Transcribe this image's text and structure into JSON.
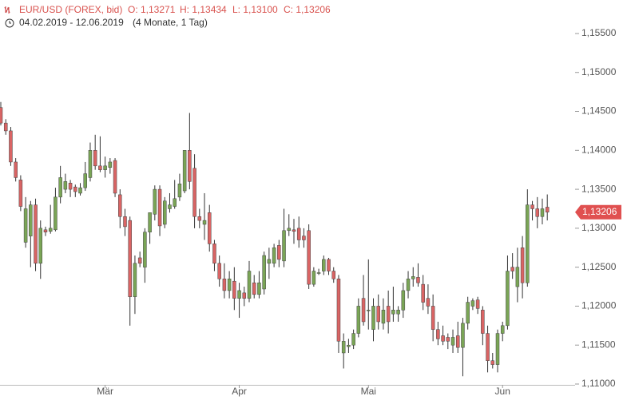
{
  "chart_data": {
    "type": "candlestick",
    "title": "EUR/USD (FOREX, bid)",
    "ohlc_labels": [
      "O: 1,13271",
      "H: 1,13434",
      "L: 1,13100",
      "C: 1,13206"
    ],
    "subtitle": "04.02.2019 - 12.06.2019",
    "duration": "(4 Monate, 1 Tag)",
    "up_color": "#7aa556",
    "down_color": "#d96464",
    "current_price": {
      "value": 1.13206,
      "label": "1,13206"
    },
    "ylim": [
      1.11,
      1.1593
    ],
    "yticks": [
      {
        "value": 1.11,
        "label": "1,11000"
      },
      {
        "value": 1.115,
        "label": "1,11500"
      },
      {
        "value": 1.12,
        "label": "1,12000"
      },
      {
        "value": 1.125,
        "label": "1,12500"
      },
      {
        "value": 1.13,
        "label": "1,13000"
      },
      {
        "value": 1.135,
        "label": "1,13500"
      },
      {
        "value": 1.14,
        "label": "1,14000"
      },
      {
        "value": 1.145,
        "label": "1,14500"
      },
      {
        "value": 1.15,
        "label": "1,15000"
      },
      {
        "value": 1.155,
        "label": "1,15500"
      }
    ],
    "categories": [
      null,
      null,
      null,
      null,
      null,
      null,
      null,
      null,
      null,
      null,
      null,
      null,
      null,
      null,
      null,
      null,
      null,
      null,
      null,
      null,
      null,
      "Mär",
      null,
      null,
      null,
      null,
      null,
      null,
      null,
      null,
      null,
      null,
      null,
      null,
      null,
      null,
      null,
      null,
      null,
      null,
      null,
      null,
      null,
      null,
      null,
      null,
      null,
      null,
      "Apr",
      null,
      null,
      null,
      null,
      null,
      null,
      null,
      null,
      null,
      null,
      null,
      null,
      null,
      null,
      null,
      null,
      null,
      null,
      null,
      null,
      null,
      null,
      null,
      null,
      null,
      "Mai",
      null,
      null,
      null,
      null,
      null,
      null,
      null,
      null,
      null,
      null,
      null,
      null,
      null,
      null,
      null,
      null,
      null,
      null,
      null,
      null,
      null,
      null,
      null,
      null,
      null,
      null,
      "Jun",
      null,
      null,
      null,
      null,
      null,
      null,
      null,
      null,
      null
    ],
    "values": [
      [
        1.1455,
        1.1462,
        1.1432,
        1.1435
      ],
      [
        1.1435,
        1.144,
        1.142,
        1.1425
      ],
      [
        1.1425,
        1.143,
        1.138,
        1.1385
      ],
      [
        1.1385,
        1.139,
        1.136,
        1.1365
      ],
      [
        1.1362,
        1.1368,
        1.1322,
        1.1328
      ],
      [
        1.1282,
        1.134,
        1.1275,
        1.1325
      ],
      [
        1.129,
        1.1335,
        1.125,
        1.133
      ],
      [
        1.133,
        1.1338,
        1.1245,
        1.1255
      ],
      [
        1.1255,
        1.131,
        1.1235,
        1.13
      ],
      [
        1.1298,
        1.1302,
        1.129,
        1.1295
      ],
      [
        1.1296,
        1.133,
        1.1293,
        1.13
      ],
      [
        1.1298,
        1.1352,
        1.1296,
        1.134
      ],
      [
        1.134,
        1.138,
        1.1332,
        1.1365
      ],
      [
        1.135,
        1.137,
        1.1345,
        1.136
      ],
      [
        1.1358,
        1.1362,
        1.134,
        1.135
      ],
      [
        1.1353,
        1.1356,
        1.134,
        1.1347
      ],
      [
        1.1345,
        1.1358,
        1.1342,
        1.1352
      ],
      [
        1.1352,
        1.1385,
        1.1348,
        1.137
      ],
      [
        1.1365,
        1.141,
        1.136,
        1.14
      ],
      [
        1.14,
        1.142,
        1.1375,
        1.138
      ],
      [
        1.138,
        1.1418,
        1.1372,
        1.1375
      ],
      [
        1.1375,
        1.1392,
        1.1365,
        1.138
      ],
      [
        1.1378,
        1.139,
        1.137,
        1.1385
      ],
      [
        1.1387,
        1.139,
        1.134,
        1.1345
      ],
      [
        1.1343,
        1.135,
        1.13,
        1.1315
      ],
      [
        1.1315,
        1.1325,
        1.129,
        1.1302
      ],
      [
        1.131,
        1.1315,
        1.1175,
        1.1212
      ],
      [
        1.1212,
        1.1265,
        1.119,
        1.1255
      ],
      [
        1.1262,
        1.127,
        1.125,
        1.1255
      ],
      [
        1.125,
        1.13,
        1.123,
        1.1295
      ],
      [
        1.1295,
        1.132,
        1.128,
        1.132
      ],
      [
        1.1318,
        1.1355,
        1.131,
        1.135
      ],
      [
        1.135,
        1.1355,
        1.129,
        1.1303
      ],
      [
        1.1305,
        1.134,
        1.13,
        1.1335
      ],
      [
        1.1325,
        1.1345,
        1.132,
        1.133
      ],
      [
        1.1328,
        1.1362,
        1.1325,
        1.1338
      ],
      [
        1.134,
        1.137,
        1.1335,
        1.1357
      ],
      [
        1.1348,
        1.14,
        1.1345,
        1.14
      ],
      [
        1.14,
        1.1448,
        1.135,
        1.136
      ],
      [
        1.1377,
        1.1395,
        1.13,
        1.1315
      ],
      [
        1.1315,
        1.1325,
        1.13,
        1.131
      ],
      [
        1.1305,
        1.1345,
        1.1285,
        1.131
      ],
      [
        1.132,
        1.133,
        1.127,
        1.128
      ],
      [
        1.128,
        1.1285,
        1.1245,
        1.1255
      ],
      [
        1.1255,
        1.1265,
        1.1225,
        1.1235
      ],
      [
        1.1235,
        1.1255,
        1.121,
        1.122
      ],
      [
        1.122,
        1.1245,
        1.121,
        1.1235
      ],
      [
        1.1232,
        1.125,
        1.1195,
        1.121
      ],
      [
        1.121,
        1.123,
        1.1185,
        1.122
      ],
      [
        1.1217,
        1.1225,
        1.12,
        1.121
      ],
      [
        1.121,
        1.1258,
        1.1205,
        1.1245
      ],
      [
        1.123,
        1.124,
        1.121,
        1.1215
      ],
      [
        1.1215,
        1.1245,
        1.121,
        1.123
      ],
      [
        1.1222,
        1.127,
        1.1215,
        1.1265
      ],
      [
        1.1255,
        1.1275,
        1.1235,
        1.126
      ],
      [
        1.1255,
        1.128,
        1.125,
        1.1275
      ],
      [
        1.1278,
        1.1285,
        1.125,
        1.126
      ],
      [
        1.1258,
        1.1325,
        1.125,
        1.1297
      ],
      [
        1.1297,
        1.1318,
        1.129,
        1.13
      ],
      [
        1.1298,
        1.1312,
        1.128,
        1.1296
      ],
      [
        1.13,
        1.1315,
        1.1275,
        1.1285
      ],
      [
        1.129,
        1.13,
        1.1275,
        1.1285
      ],
      [
        1.1297,
        1.1305,
        1.1222,
        1.1228
      ],
      [
        1.1228,
        1.125,
        1.1225,
        1.1245
      ],
      [
        1.1242,
        1.1248,
        1.124,
        1.1243
      ],
      [
        1.1245,
        1.1265,
        1.124,
        1.126
      ],
      [
        1.126,
        1.1262,
        1.124,
        1.1245
      ],
      [
        1.1245,
        1.125,
        1.123,
        1.1235
      ],
      [
        1.1235,
        1.124,
        1.114,
        1.1155
      ],
      [
        1.114,
        1.1165,
        1.112,
        1.1155
      ],
      [
        1.1148,
        1.1158,
        1.114,
        1.115
      ],
      [
        1.115,
        1.117,
        1.1145,
        1.1165
      ],
      [
        1.1165,
        1.121,
        1.116,
        1.12
      ],
      [
        1.121,
        1.124,
        1.1175,
        1.118
      ],
      [
        1.1195,
        1.126,
        1.117,
        1.1195
      ],
      [
        1.117,
        1.121,
        1.1155,
        1.12
      ],
      [
        1.12,
        1.1215,
        1.117,
        1.118
      ],
      [
        1.1178,
        1.121,
        1.117,
        1.1195
      ],
      [
        1.12,
        1.122,
        1.1165,
        1.118
      ],
      [
        1.119,
        1.1225,
        1.118,
        1.1195
      ],
      [
        1.119,
        1.12,
        1.118,
        1.1195
      ],
      [
        1.1195,
        1.123,
        1.1185,
        1.122
      ],
      [
        1.122,
        1.1245,
        1.121,
        1.1235
      ],
      [
        1.1235,
        1.125,
        1.1225,
        1.1238
      ],
      [
        1.1237,
        1.1255,
        1.1225,
        1.123
      ],
      [
        1.1228,
        1.124,
        1.1195,
        1.1205
      ],
      [
        1.121,
        1.1228,
        1.119,
        1.12
      ],
      [
        1.12,
        1.1215,
        1.1155,
        1.117
      ],
      [
        1.117,
        1.118,
        1.115,
        1.1158
      ],
      [
        1.1162,
        1.1175,
        1.115,
        1.1155
      ],
      [
        1.116,
        1.1165,
        1.1145,
        1.1155
      ],
      [
        1.115,
        1.117,
        1.114,
        1.116
      ],
      [
        1.1162,
        1.118,
        1.114,
        1.1147
      ],
      [
        1.1147,
        1.1185,
        1.111,
        1.1178
      ],
      [
        1.1178,
        1.1212,
        1.117,
        1.1205
      ],
      [
        1.12,
        1.121,
        1.1195,
        1.1207
      ],
      [
        1.1208,
        1.1212,
        1.119,
        1.1197
      ],
      [
        1.1195,
        1.12,
        1.115,
        1.1165
      ],
      [
        1.1165,
        1.1175,
        1.1115,
        1.113
      ],
      [
        1.113,
        1.114,
        1.112,
        1.1125
      ],
      [
        1.1125,
        1.117,
        1.1115,
        1.1165
      ],
      [
        1.1165,
        1.118,
        1.1155,
        1.1175
      ],
      [
        1.1175,
        1.1265,
        1.117,
        1.1245
      ],
      [
        1.125,
        1.1268,
        1.1235,
        1.1245
      ],
      [
        1.1225,
        1.1275,
        1.1205,
        1.125
      ],
      [
        1.1275,
        1.129,
        1.121,
        1.123
      ],
      [
        1.123,
        1.135,
        1.1225,
        1.133
      ],
      [
        1.133,
        1.1335,
        1.131,
        1.1325
      ],
      [
        1.1325,
        1.134,
        1.13,
        1.1315
      ],
      [
        1.1315,
        1.1338,
        1.1305,
        1.1325
      ],
      [
        1.13271,
        1.13434,
        1.131,
        1.13206
      ]
    ]
  }
}
